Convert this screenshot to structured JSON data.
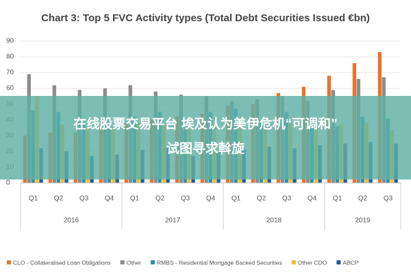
{
  "chart_data": {
    "type": "bar",
    "title": "Chart 3: Top 5 FVC Activity types (Total Debt Securities Issued €bn)",
    "groups": [
      {
        "label": "2016",
        "categories": [
          "Q1",
          "Q2",
          "Q3",
          "Q4"
        ]
      },
      {
        "label": "2017",
        "categories": [
          "Q1",
          "Q2",
          "Q3",
          "Q4"
        ]
      },
      {
        "label": "2018",
        "categories": [
          "Q1",
          "Q2",
          "Q3",
          "Q4"
        ]
      },
      {
        "label": "2019",
        "categories": [
          "Q1",
          "Q2",
          "Q3"
        ]
      }
    ],
    "series": [
      {
        "name": "CLO - Collateralised Loan Obligations",
        "color": "#e8742a",
        "values": [
          30,
          32,
          32,
          35,
          38,
          40,
          42,
          44,
          49,
          50,
          57,
          61,
          68,
          76,
          83
        ]
      },
      {
        "name": "Other",
        "color": "#8c8c8c",
        "values": [
          69,
          62,
          59,
          60,
          62,
          58,
          56,
          55,
          52,
          53,
          55,
          52,
          59,
          66,
          67
        ]
      },
      {
        "name": "RMBS - Residential Mortgage Backed Securities",
        "color": "#2a8fb5",
        "values": [
          46,
          45,
          38,
          40,
          42,
          45,
          34,
          45,
          47,
          40,
          45,
          38,
          36,
          42,
          41
        ]
      },
      {
        "name": "Other CDO",
        "color": "#f2c12e",
        "values": [
          55,
          37,
          35,
          35,
          38,
          38,
          36,
          38,
          38,
          35,
          38,
          36,
          37,
          38,
          34
        ]
      },
      {
        "name": "ABCP",
        "color": "#1f5a9e",
        "values": [
          22,
          20,
          17,
          18,
          21,
          22,
          17,
          20,
          21,
          23,
          22,
          24,
          25,
          26,
          25
        ]
      }
    ],
    "ylim": [
      0,
      90
    ],
    "yticks": [
      0,
      10,
      20,
      30,
      40,
      50,
      60,
      70,
      80,
      90
    ],
    "grid": true
  },
  "overlay": {
    "lines": [
      "在线股票交易平台 埃及认为美伊危机“可调和”",
      "试图寻求斡旋"
    ]
  }
}
